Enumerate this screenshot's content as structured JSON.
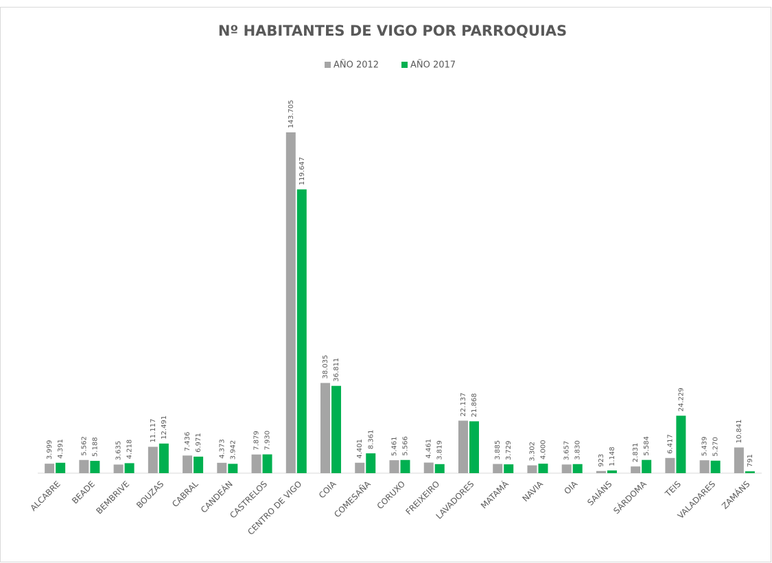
{
  "chart_data": {
    "type": "bar",
    "title": "Nº HABITANTES DE VIGO POR PARROQUIAS",
    "categories": [
      "ALCABRE",
      "BEADE",
      "BEMBRIVE",
      "BOUZAS",
      "CABRAL",
      "CANDEÁN",
      "CASTRELOS",
      "CENTRO DE VIGO",
      "COIA",
      "COMESAÑA",
      "CORUXO",
      "FREIXEIRO",
      "LAVADORES",
      "MATAMÁ",
      "NAVIA",
      "OIA",
      "SAIÁNS",
      "SÁRDOMA",
      "TEIS",
      "VALADARES",
      "ZAMÁNS"
    ],
    "series": [
      {
        "name": "AÑO 2012",
        "color": "#a5a5a5",
        "values": [
          3999,
          5562,
          3635,
          11117,
          7436,
          4373,
          7879,
          143705,
          38035,
          4401,
          5461,
          4461,
          22137,
          3885,
          3302,
          3657,
          923,
          2831,
          6417,
          5439,
          10841
        ],
        "value_labels": [
          "3.999",
          "5.562",
          "3.635",
          "11.117",
          "7.436",
          "4.373",
          "7.879",
          "143.705",
          "38.035",
          "4.401",
          "5.461",
          "4.461",
          "22.137",
          "3.885",
          "3.302",
          "3.657",
          "923",
          "2.831",
          "6.417",
          "5.439",
          "10.841"
        ]
      },
      {
        "name": "AÑO 2017",
        "color": "#00b050",
        "values": [
          4391,
          5188,
          4218,
          12491,
          6971,
          3942,
          7930,
          119647,
          36811,
          8361,
          5566,
          3819,
          21868,
          3729,
          4000,
          3830,
          1148,
          5584,
          24229,
          5270,
          791
        ],
        "value_labels": [
          "4.391",
          "5.188",
          "4.218",
          "12.491",
          "6.971",
          "3.942",
          "7.930",
          "119.647",
          "36.811",
          "8.361",
          "5.566",
          "3.819",
          "21.868",
          "3.729",
          "4.000",
          "3.830",
          "1.148",
          "5.584",
          "24.229",
          "5.270",
          "791"
        ]
      }
    ],
    "legend": "top"
  }
}
